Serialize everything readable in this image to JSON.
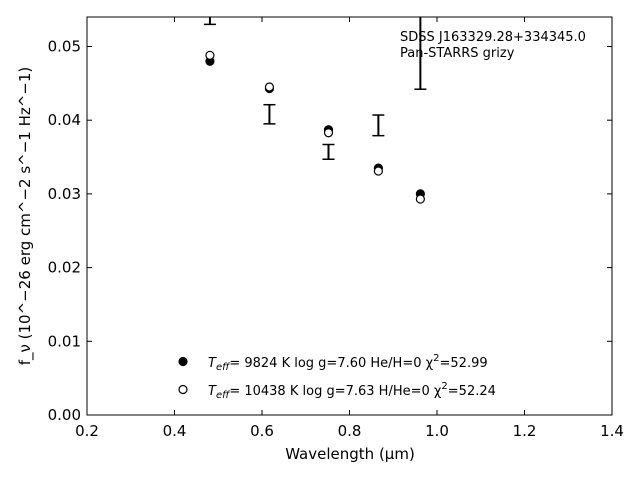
{
  "chart_data": {
    "type": "scatter",
    "xlabel": "Wavelength (μm)",
    "ylabel": "f_ν (10^−26 erg cm^−2 s^−1 Hz^−1)",
    "xlim": [
      0.2,
      1.4
    ],
    "ylim": [
      0.0,
      0.054
    ],
    "x_ticks": [
      "0.2",
      "0.4",
      "0.6",
      "0.8",
      "1.0",
      "1.2",
      "1.4"
    ],
    "y_ticks": [
      "0.00",
      "0.01",
      "0.02",
      "0.03",
      "0.04",
      "0.05"
    ],
    "annotation_lines": [
      "SDSS J163329.28+334345.0",
      "Pan-STARRS grizy"
    ],
    "observed": {
      "x": [
        0.481,
        0.617,
        0.752,
        0.866,
        0.962
      ],
      "y": [
        0.056,
        0.0408,
        0.0357,
        0.0393,
        0.054
      ],
      "yerr": [
        0.003,
        0.0013,
        0.001,
        0.0014,
        0.0098
      ]
    },
    "series": [
      {
        "model": "filled",
        "legend": {
          "teff_label": "T",
          "teff_sub": "eff",
          "text": "=  9824 K  log g=7.60  He/H=0  χ",
          "chi_sup": "2",
          "chi_val": "=52.99"
        },
        "x": [
          0.481,
          0.617,
          0.752,
          0.866,
          0.962
        ],
        "y": [
          0.048,
          0.0443,
          0.0387,
          0.0335,
          0.03
        ]
      },
      {
        "model": "open",
        "legend": {
          "teff_label": "T",
          "teff_sub": "eff",
          "text": "= 10438 K  log g=7.63  H/He=0  χ",
          "chi_sup": "2",
          "chi_val": "=52.24"
        },
        "x": [
          0.481,
          0.617,
          0.752,
          0.866,
          0.962
        ],
        "y": [
          0.0488,
          0.0445,
          0.0383,
          0.0331,
          0.0293
        ]
      }
    ],
    "grid": false,
    "legend_position": "lower-center"
  }
}
